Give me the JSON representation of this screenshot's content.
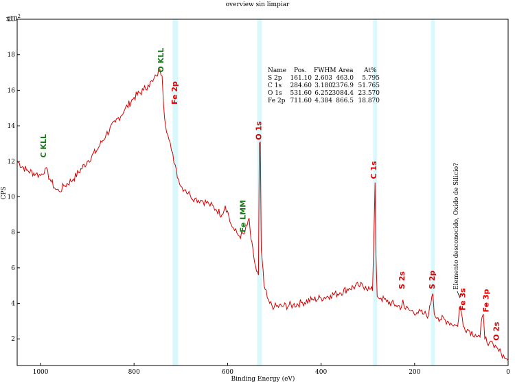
{
  "chart_data": {
    "type": "line",
    "title": "overview sin limpiar",
    "xlabel": "Binding Energy (eV)",
    "ylabel": "CPS",
    "y_multiplier": "x10^2",
    "y_multiplier_base": "x10",
    "y_multiplier_exp": "2",
    "xlim": [
      1050,
      0
    ],
    "ylim": [
      0.5,
      20
    ],
    "x_ticks": [
      1000,
      800,
      600,
      400,
      200,
      0
    ],
    "y_ticks": [
      2,
      4,
      6,
      8,
      10,
      12,
      14,
      16,
      18,
      20
    ],
    "grid": false,
    "colors": {
      "spectrum": "#d40000",
      "auger_label": "#1a7a1a",
      "photo_label": "#e00000",
      "highlight": "#d8f8fc"
    },
    "highlight_regions": [
      {
        "center": 711.6,
        "width": 12
      },
      {
        "center": 531.6,
        "width": 10
      },
      {
        "center": 284.6,
        "width": 8
      },
      {
        "center": 161.1,
        "width": 8
      }
    ],
    "series": [
      {
        "points": [
          [
            1050,
            12.0
          ],
          [
            1030,
            11.5
          ],
          [
            1010,
            11.3
          ],
          [
            1000,
            11.2
          ],
          [
            990,
            11.6
          ],
          [
            980,
            11.0
          ],
          [
            970,
            10.5
          ],
          [
            960,
            10.3
          ],
          [
            950,
            10.6
          ],
          [
            930,
            11.0
          ],
          [
            900,
            12.0
          ],
          [
            880,
            12.6
          ],
          [
            860,
            13.5
          ],
          [
            840,
            14.2
          ],
          [
            820,
            14.9
          ],
          [
            800,
            15.6
          ],
          [
            780,
            16.0
          ],
          [
            770,
            16.3
          ],
          [
            760,
            16.5
          ],
          [
            752,
            16.8
          ],
          [
            745,
            17.2
          ],
          [
            740,
            16.8
          ],
          [
            735,
            14.5
          ],
          [
            728,
            13.5
          ],
          [
            720,
            12.6
          ],
          [
            712,
            11.8
          ],
          [
            705,
            11.0
          ],
          [
            700,
            10.6
          ],
          [
            690,
            10.4
          ],
          [
            680,
            10.1
          ],
          [
            670,
            9.9
          ],
          [
            655,
            9.8
          ],
          [
            640,
            9.6
          ],
          [
            625,
            9.3
          ],
          [
            612,
            9.0
          ],
          [
            605,
            9.5
          ],
          [
            600,
            9.2
          ],
          [
            595,
            8.6
          ],
          [
            585,
            8.1
          ],
          [
            575,
            7.8
          ],
          [
            565,
            7.9
          ],
          [
            558,
            8.4
          ],
          [
            554,
            8.8
          ],
          [
            550,
            7.6
          ],
          [
            544,
            6.6
          ],
          [
            538,
            5.8
          ],
          [
            534,
            5.6
          ],
          [
            532,
            13.0
          ],
          [
            530,
            13.1
          ],
          [
            528,
            7.0
          ],
          [
            522,
            5.0
          ],
          [
            515,
            4.3
          ],
          [
            510,
            4.0
          ],
          [
            500,
            3.8
          ],
          [
            480,
            3.85
          ],
          [
            460,
            3.9
          ],
          [
            440,
            4.05
          ],
          [
            420,
            4.2
          ],
          [
            400,
            4.3
          ],
          [
            380,
            4.45
          ],
          [
            360,
            4.6
          ],
          [
            340,
            4.85
          ],
          [
            320,
            5.0
          ],
          [
            305,
            4.95
          ],
          [
            296,
            4.8
          ],
          [
            290,
            4.7
          ],
          [
            286,
            9.0
          ],
          [
            284.6,
            10.8
          ],
          [
            283,
            7.0
          ],
          [
            280,
            4.4
          ],
          [
            272,
            4.3
          ],
          [
            260,
            4.1
          ],
          [
            240,
            3.9
          ],
          [
            228,
            3.8
          ],
          [
            225,
            4.2
          ],
          [
            222,
            3.75
          ],
          [
            210,
            3.6
          ],
          [
            195,
            3.5
          ],
          [
            180,
            3.4
          ],
          [
            170,
            3.35
          ],
          [
            163,
            4.4
          ],
          [
            161,
            4.55
          ],
          [
            158,
            3.4
          ],
          [
            150,
            3.2
          ],
          [
            130,
            3.0
          ],
          [
            115,
            2.8
          ],
          [
            108,
            2.7
          ],
          [
            104,
            3.8
          ],
          [
            100,
            3.5
          ],
          [
            96,
            2.7
          ],
          [
            85,
            2.5
          ],
          [
            70,
            2.25
          ],
          [
            60,
            2.1
          ],
          [
            56,
            3.2
          ],
          [
            53,
            3.4
          ],
          [
            50,
            2.0
          ],
          [
            40,
            1.8
          ],
          [
            30,
            1.5
          ],
          [
            25,
            1.55
          ],
          [
            20,
            1.3
          ],
          [
            15,
            1.2
          ],
          [
            10,
            1.1
          ],
          [
            5,
            0.9
          ],
          [
            0,
            0.75
          ]
        ]
      }
    ],
    "peak_labels": [
      {
        "text": "C KLL",
        "x": 988,
        "y": 12.2,
        "kind": "auger"
      },
      {
        "text": "O KLL",
        "x": 737,
        "y": 17.0,
        "kind": "auger"
      },
      {
        "text": "Fe 2p",
        "x": 708,
        "y": 15.2,
        "kind": "photo"
      },
      {
        "text": "Fe LMM",
        "x": 562,
        "y": 8.0,
        "kind": "auger"
      },
      {
        "text": "O 1s",
        "x": 528,
        "y": 13.2,
        "kind": "photo"
      },
      {
        "text": "C 1s",
        "x": 282,
        "y": 11.0,
        "kind": "photo"
      },
      {
        "text": "S 2s",
        "x": 222,
        "y": 4.8,
        "kind": "photo"
      },
      {
        "text": "S 2p",
        "x": 157,
        "y": 4.8,
        "kind": "photo"
      },
      {
        "text": "Fe 3s",
        "x": 92,
        "y": 3.6,
        "kind": "photo"
      },
      {
        "text": "Fe 3p",
        "x": 42,
        "y": 3.5,
        "kind": "photo"
      },
      {
        "text": "O 2s",
        "x": 20,
        "y": 1.9,
        "kind": "photo"
      }
    ],
    "annotation": {
      "text": "Elemento desconocido, Oxido de Silicio?",
      "x": 103,
      "y": 4.3
    },
    "quant_table": {
      "columns": [
        "Name",
        "Pos.",
        "FWHM",
        "Area",
        "At%"
      ],
      "rows": [
        [
          "S 2p",
          "161.10",
          "2.603",
          "463.0",
          "5.795"
        ],
        [
          "C 1s",
          "284.60",
          "3.180",
          "2376.9",
          "51.765"
        ],
        [
          "O 1s",
          "531.60",
          "6.252",
          "3084.4",
          "23.570"
        ],
        [
          "Fe 2p",
          "711.60",
          "4.384",
          "866.5",
          "18.870"
        ]
      ]
    }
  }
}
